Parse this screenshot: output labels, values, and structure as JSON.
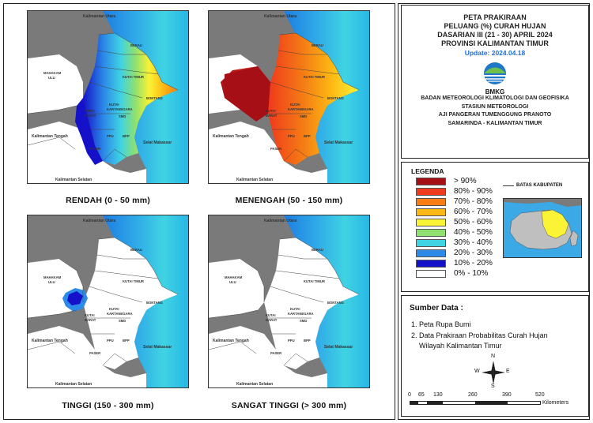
{
  "title": {
    "line1": "PETA PRAKIRAAN",
    "line2": "PELUANG (%) CURAH HUJAN",
    "line3": "DASARIAN III (21 - 30) APRIL 2024",
    "line4": "PROVINSI KALIMANTAN TIMUR",
    "update": "Update: 2024.04.18"
  },
  "logo": {
    "text": "BMKG",
    "icon": "bmkg-logo"
  },
  "agency": {
    "line1": "BADAN METEOROLOGI KLIMATOLOGI DAN GEOFISIKA",
    "line2": "STASIUN METEOROLOGI",
    "line3": "AJI PANGERAN TUMENGGUNG PRANOTO",
    "line4": "SAMARINDA - KALIMANTAN TIMUR"
  },
  "maps": [
    {
      "caption": "RENDAH (0 - 50 mm)"
    },
    {
      "caption": "MENENGAH (50 - 150 mm)"
    },
    {
      "caption": "TINGGI (150 - 300 mm)"
    },
    {
      "caption": "SANGAT TINGGI (> 300 mm)"
    }
  ],
  "map_labels": {
    "kaltara": "Kalimantan Utara",
    "berau": "BERAU",
    "mahakam1": "MAHAKAM",
    "mahakam2": "ULU",
    "kutim": "KUTAI TIMUR",
    "bontang": "BONTANG",
    "kukar1": "KUTAI",
    "kukar2": "KARTANEGARA",
    "kubar1": "KUTAI",
    "kubar2": "BARAT",
    "smd": "SMD",
    "kalteng": "Kalimantan Tengah",
    "ppu": "PPU",
    "bpp": "BPP",
    "paser": "PASER",
    "selat": "Selat Makassar",
    "kalsel": "Kalimantan Selatan"
  },
  "legend": {
    "title": "LEGENDA",
    "items": [
      {
        "label": "> 90%",
        "color": "#a50f15"
      },
      {
        "label": "80% - 90%",
        "color": "#ef3b1c"
      },
      {
        "label": "70% - 80%",
        "color": "#f57d14"
      },
      {
        "label": "60% - 70%",
        "color": "#fdb813"
      },
      {
        "label": "50% - 60%",
        "color": "#fbf335"
      },
      {
        "label": "40% - 50%",
        "color": "#8ee070"
      },
      {
        "label": "30% - 40%",
        "color": "#3fd3e3"
      },
      {
        "label": "20% - 30%",
        "color": "#2c8ae8"
      },
      {
        "label": "10% - 20%",
        "color": "#1411c8"
      },
      {
        "label": "0% - 10%",
        "color": "#ffffff"
      }
    ],
    "boundary_label": "BATAS KABUPATEN"
  },
  "source": {
    "title": "Sumber Data :",
    "item1": "1. Peta Rupa Bumi",
    "item2a": "2. Data Prakiraan Probabilitas Curah Hujan",
    "item2b": "Wilayah Kalimantan Timur"
  },
  "compass": {
    "n": "N",
    "s": "S",
    "e": "E",
    "w": "W"
  },
  "scale": {
    "ticks": [
      "0",
      "65",
      "130",
      "260",
      "390",
      "520"
    ],
    "unit": "Kilometers"
  }
}
